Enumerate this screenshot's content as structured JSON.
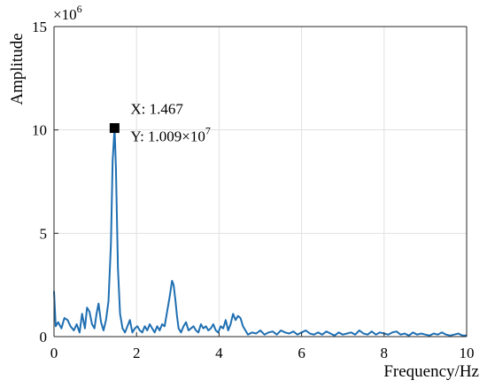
{
  "chart_data": {
    "type": "line",
    "xlabel": "Frequency/Hz",
    "ylabel": "Amplitude",
    "y_exponent_label": "×10",
    "y_exponent_power": "6",
    "xlim": [
      0,
      10
    ],
    "ylim": [
      0,
      15
    ],
    "xticks": [
      0,
      2,
      4,
      6,
      8,
      10
    ],
    "yticks": [
      0,
      5,
      10,
      15
    ],
    "grid": true,
    "series_color": "#1f6fb2",
    "series": [
      {
        "x": [
          0,
          0.04,
          0.1,
          0.18,
          0.25,
          0.33,
          0.4,
          0.48,
          0.55,
          0.62,
          0.68,
          0.75,
          0.8,
          0.86,
          0.92,
          0.98,
          1.03,
          1.08,
          1.14,
          1.2,
          1.26,
          1.32,
          1.38,
          1.42,
          1.467,
          1.5,
          1.55,
          1.6,
          1.66,
          1.72,
          1.78,
          1.84,
          1.9,
          1.96,
          2.02,
          2.08,
          2.14,
          2.2,
          2.26,
          2.32,
          2.38,
          2.44,
          2.5,
          2.56,
          2.62,
          2.68,
          2.74,
          2.8,
          2.86,
          2.9,
          2.94,
          2.98,
          3.02,
          3.08,
          3.14,
          3.2,
          3.26,
          3.32,
          3.38,
          3.44,
          3.5,
          3.56,
          3.62,
          3.68,
          3.74,
          3.8,
          3.86,
          3.92,
          3.98,
          4.04,
          4.1,
          4.16,
          4.22,
          4.28,
          4.34,
          4.4,
          4.46,
          4.52,
          4.58,
          4.64,
          4.7,
          4.8,
          4.9,
          5.0,
          5.1,
          5.2,
          5.3,
          5.4,
          5.5,
          5.6,
          5.7,
          5.8,
          5.9,
          6.0,
          6.1,
          6.2,
          6.3,
          6.4,
          6.5,
          6.6,
          6.7,
          6.8,
          6.9,
          7.0,
          7.1,
          7.2,
          7.3,
          7.4,
          7.5,
          7.6,
          7.7,
          7.8,
          7.9,
          8.0,
          8.1,
          8.2,
          8.3,
          8.4,
          8.5,
          8.6,
          8.7,
          8.8,
          8.9,
          9.0,
          9.1,
          9.2,
          9.3,
          9.4,
          9.5,
          9.6,
          9.7,
          9.8,
          9.9,
          10.0
        ],
        "y": [
          2.2,
          0.5,
          0.7,
          0.4,
          0.9,
          0.8,
          0.5,
          0.3,
          0.6,
          0.2,
          1.1,
          0.4,
          1.4,
          1.2,
          0.6,
          0.4,
          1.1,
          1.6,
          0.7,
          0.3,
          0.8,
          1.7,
          4.5,
          8.5,
          10.09,
          8.2,
          3.3,
          1.1,
          0.4,
          0.2,
          0.5,
          0.8,
          0.2,
          0.4,
          0.5,
          0.3,
          0.2,
          0.5,
          0.3,
          0.6,
          0.4,
          0.2,
          0.5,
          0.3,
          0.6,
          0.5,
          1.2,
          1.9,
          2.7,
          2.5,
          1.8,
          1.0,
          0.4,
          0.2,
          0.5,
          0.7,
          0.3,
          0.4,
          0.5,
          0.3,
          0.2,
          0.6,
          0.4,
          0.5,
          0.3,
          0.4,
          0.6,
          0.3,
          0.2,
          0.5,
          0.4,
          0.8,
          0.3,
          0.6,
          1.1,
          0.8,
          1.0,
          0.9,
          0.5,
          0.3,
          0.1,
          0.2,
          0.15,
          0.3,
          0.1,
          0.2,
          0.25,
          0.1,
          0.3,
          0.2,
          0.15,
          0.25,
          0.1,
          0.2,
          0.3,
          0.15,
          0.1,
          0.2,
          0.1,
          0.25,
          0.15,
          0.05,
          0.2,
          0.1,
          0.15,
          0.2,
          0.1,
          0.3,
          0.15,
          0.1,
          0.25,
          0.1,
          0.2,
          0.15,
          0.1,
          0.2,
          0.25,
          0.1,
          0.15,
          0.05,
          0.2,
          0.1,
          0.15,
          0.1,
          0.05,
          0.15,
          0.1,
          0.2,
          0.1,
          0.05,
          0.1,
          0.15,
          0.05,
          0.05
        ]
      }
    ],
    "datatip": {
      "x": 1.467,
      "y": 10.09,
      "x_text": "X: 1.467",
      "y_text": "Y:  1.009×10",
      "y_exponent": "7"
    }
  }
}
